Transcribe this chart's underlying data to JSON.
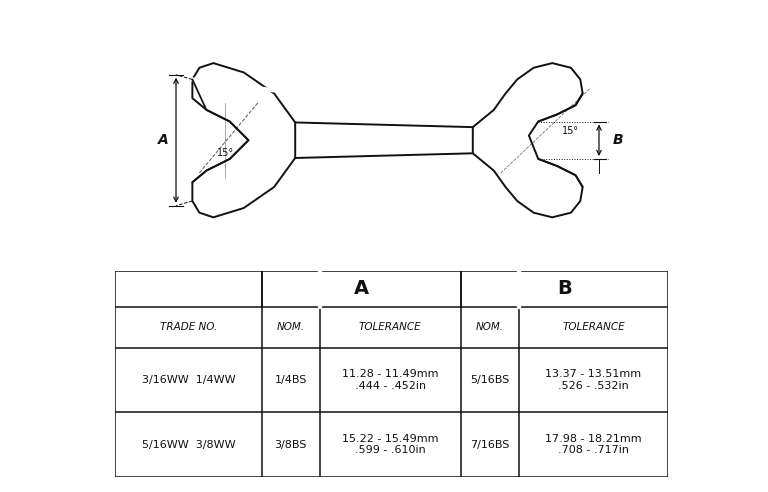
{
  "background_color": "#ffffff",
  "table": {
    "header_row1": [
      "",
      "A",
      "B"
    ],
    "header_row2": [
      "TRADE NO.",
      "NOM.",
      "TOLERANCE",
      "NOM.",
      "TOLERANCE"
    ],
    "data_rows": [
      [
        "3/16WW  1/4WW",
        "1/4BS",
        "11.28 - 11.49mm\n.444 - .452in",
        "5/16BS",
        "13.37 - 13.51mm\n.526 - .532in"
      ],
      [
        "5/16WW  3/8WW",
        "3/8BS",
        "15.22 - 15.49mm\n.599 - .610in",
        "7/16BS",
        "17.98 - 18.21mm\n.708 - .717in"
      ]
    ]
  },
  "wrench": {
    "line_color": "#111111",
    "lw": 1.4
  }
}
